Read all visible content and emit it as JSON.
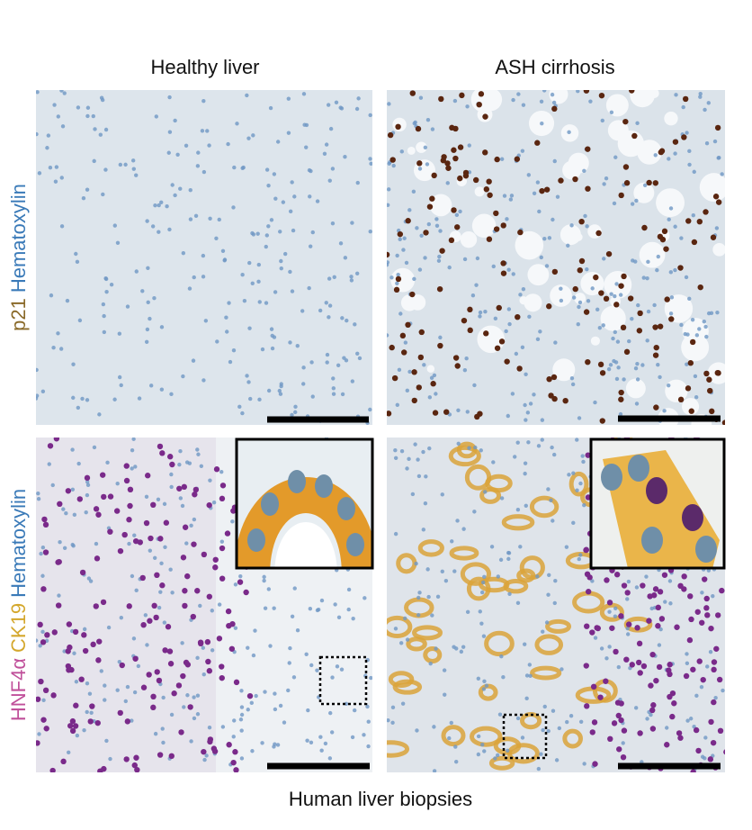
{
  "columns": [
    "Healthy liver",
    "ASH cirrhosis"
  ],
  "rows": [
    {
      "label": [
        "p21",
        "Hematoxylin"
      ]
    },
    {
      "label": [
        "HNF4α",
        "CK19",
        "Hematoxylin"
      ]
    }
  ],
  "footer": "Human liver biopsies"
}
